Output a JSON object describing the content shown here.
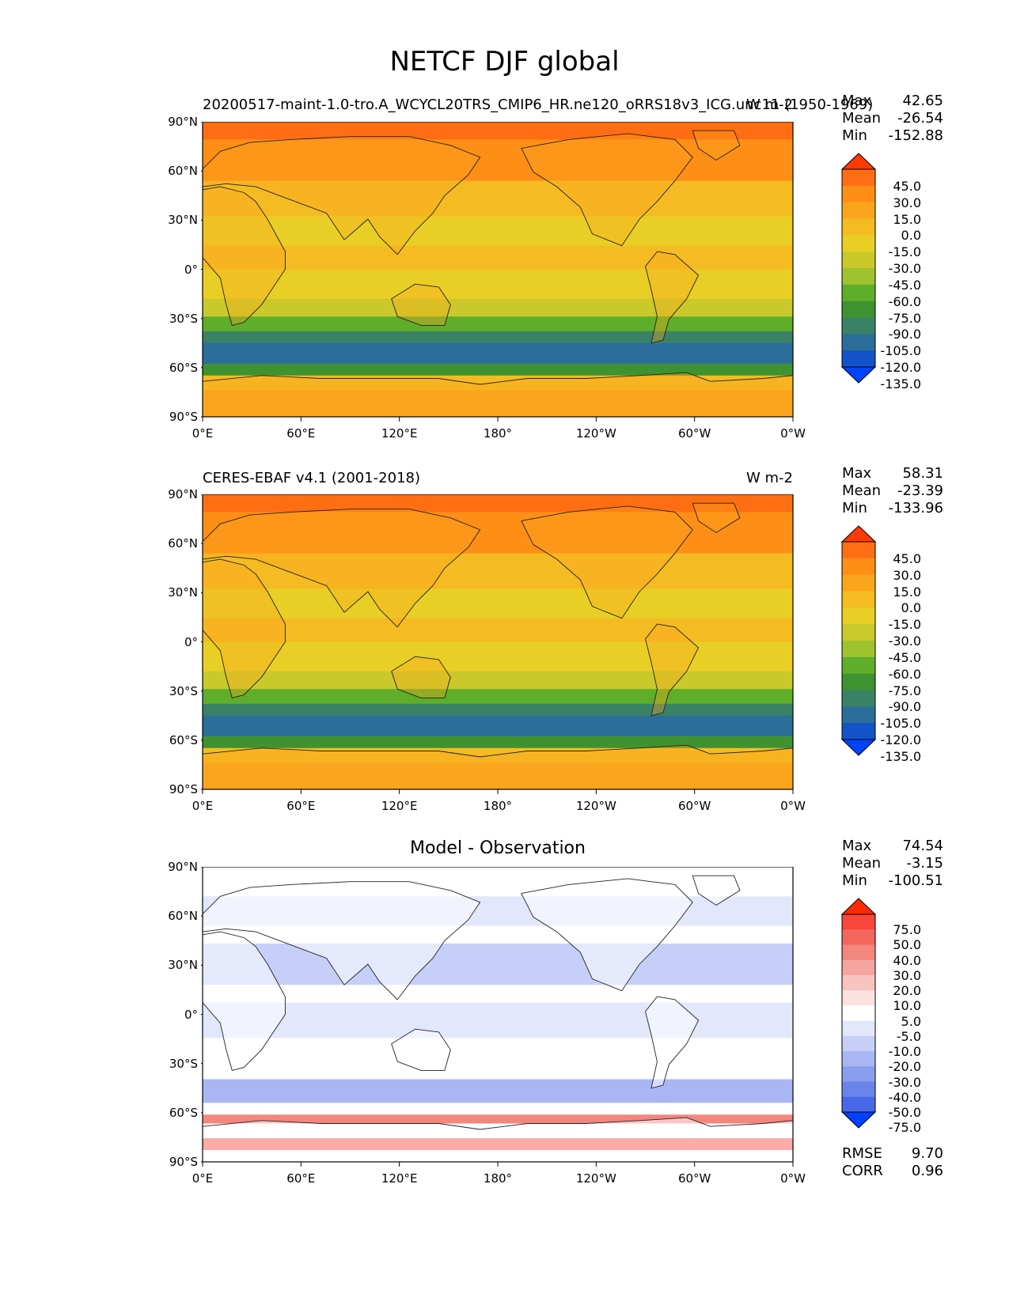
{
  "suptitle": "NETCF DJF global",
  "panels": [
    {
      "id": "model",
      "left_title": "20200517-maint-1.0-tro.A_WCYCL20TRS_CMIP6_HR.ne120_oRRS18v3_ICG.unc11 (1950-1969)",
      "right_title": "W m-2",
      "center_title": "",
      "stats": {
        "max_label": "Max",
        "max": "42.65",
        "mean_label": "Mean",
        "mean": "-26.54",
        "min_label": "Min",
        "min": "-152.88"
      },
      "colorbar": [
        "45.0",
        "30.0",
        "15.0",
        "0.0",
        "-15.0",
        "-30.0",
        "-45.0",
        "-60.0",
        "-75.0",
        "-90.0",
        "-105.0",
        "-120.0",
        "-135.0"
      ],
      "colorbar_colors": [
        "#ff3a00",
        "#ff6e12",
        "#fd8f17",
        "#fba51c",
        "#f5bb22",
        "#e9cf25",
        "#c9c92c",
        "#9fc32e",
        "#5fae2a",
        "#3e9330",
        "#3a8266",
        "#2b6e9a",
        "#1253c8",
        "#0043ff"
      ]
    },
    {
      "id": "obs",
      "left_title": "CERES-EBAF v4.1 (2001-2018)",
      "right_title": "W m-2",
      "center_title": "",
      "stats": {
        "max_label": "Max",
        "max": "58.31",
        "mean_label": "Mean",
        "mean": "-23.39",
        "min_label": "Min",
        "min": "-133.96"
      },
      "colorbar": [
        "45.0",
        "30.0",
        "15.0",
        "0.0",
        "-15.0",
        "-30.0",
        "-45.0",
        "-60.0",
        "-75.0",
        "-90.0",
        "-105.0",
        "-120.0",
        "-135.0"
      ],
      "colorbar_colors": [
        "#ff3a00",
        "#ff6e12",
        "#fd8f17",
        "#fba51c",
        "#f5bb22",
        "#e9cf25",
        "#c9c92c",
        "#9fc32e",
        "#5fae2a",
        "#3e9330",
        "#3a8266",
        "#2b6e9a",
        "#1253c8",
        "#0043ff"
      ]
    },
    {
      "id": "diff",
      "left_title": "",
      "right_title": "",
      "center_title": "Model - Observation",
      "stats": {
        "max_label": "Max",
        "max": "74.54",
        "mean_label": "Mean",
        "mean": "-3.15",
        "min_label": "Min",
        "min": "-100.51"
      },
      "colorbar": [
        "75.0",
        "50.0",
        "40.0",
        "30.0",
        "20.0",
        "10.0",
        "5.0",
        "-5.0",
        "-10.0",
        "-20.0",
        "-30.0",
        "-40.0",
        "-50.0",
        "-75.0"
      ],
      "colorbar_colors": [
        "#ff2a00",
        "#f8463a",
        "#f5665c",
        "#f3867d",
        "#f4a59f",
        "#f7c4c0",
        "#fbe2e0",
        "#ffffff",
        "#e2e7fb",
        "#c5cff8",
        "#a8b7f3",
        "#8a9eee",
        "#6a84ea",
        "#4668e9",
        "#0040ff"
      ]
    }
  ],
  "lat_ticks": [
    "90°N",
    "60°N",
    "30°N",
    "0°",
    "30°S",
    "60°S",
    "90°S"
  ],
  "lon_ticks": [
    "0°E",
    "60°E",
    "120°E",
    "180°",
    "120°W",
    "60°W",
    "0°W"
  ],
  "rmse_label": "RMSE",
  "rmse": "9.70",
  "corr_label": "CORR",
  "corr": "0.96"
}
